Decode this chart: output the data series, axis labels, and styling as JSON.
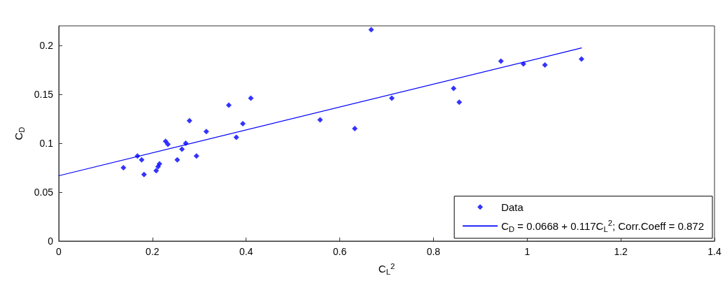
{
  "chart_data": {
    "type": "scatter",
    "xlabel": "C$_{L}$$^{2}$",
    "ylabel": "C$_{D}$",
    "xlim": [
      0,
      1.4
    ],
    "xticks": [
      0,
      0.2,
      0.4,
      0.6,
      0.8,
      1,
      1.2,
      1.4
    ],
    "ylim": [
      0,
      0.22
    ],
    "yticks": [
      0,
      0.05,
      0.1,
      0.15,
      0.2
    ],
    "series": [
      {
        "name": "Data",
        "type": "scatter",
        "marker": "diamond",
        "color": "#0000ff",
        "x": [
          0.138,
          0.168,
          0.177,
          0.182,
          0.208,
          0.212,
          0.215,
          0.228,
          0.233,
          0.253,
          0.263,
          0.271,
          0.279,
          0.294,
          0.315,
          0.363,
          0.379,
          0.393,
          0.41,
          0.558,
          0.632,
          0.667,
          0.711,
          0.843,
          0.855,
          0.944,
          0.992,
          1.038,
          1.116
        ],
        "values": [
          0.075,
          0.087,
          0.083,
          0.068,
          0.072,
          0.076,
          0.079,
          0.102,
          0.099,
          0.083,
          0.094,
          0.1,
          0.123,
          0.087,
          0.112,
          0.139,
          0.106,
          0.12,
          0.146,
          0.124,
          0.115,
          0.216,
          0.146,
          0.156,
          0.142,
          0.184,
          0.181,
          0.18,
          0.186
        ]
      },
      {
        "name": "C$_{D}$ = 0.0668 + 0.117C$_{L}$$^{2}$; Corr.Coeff = 0.872",
        "type": "line",
        "marker": "none",
        "line_style": "solid",
        "color": "#0000ff",
        "x": [
          0,
          1.116
        ],
        "values": [
          0.0668,
          0.1974
        ]
      }
    ],
    "grid": false,
    "legend": "bottom right"
  }
}
